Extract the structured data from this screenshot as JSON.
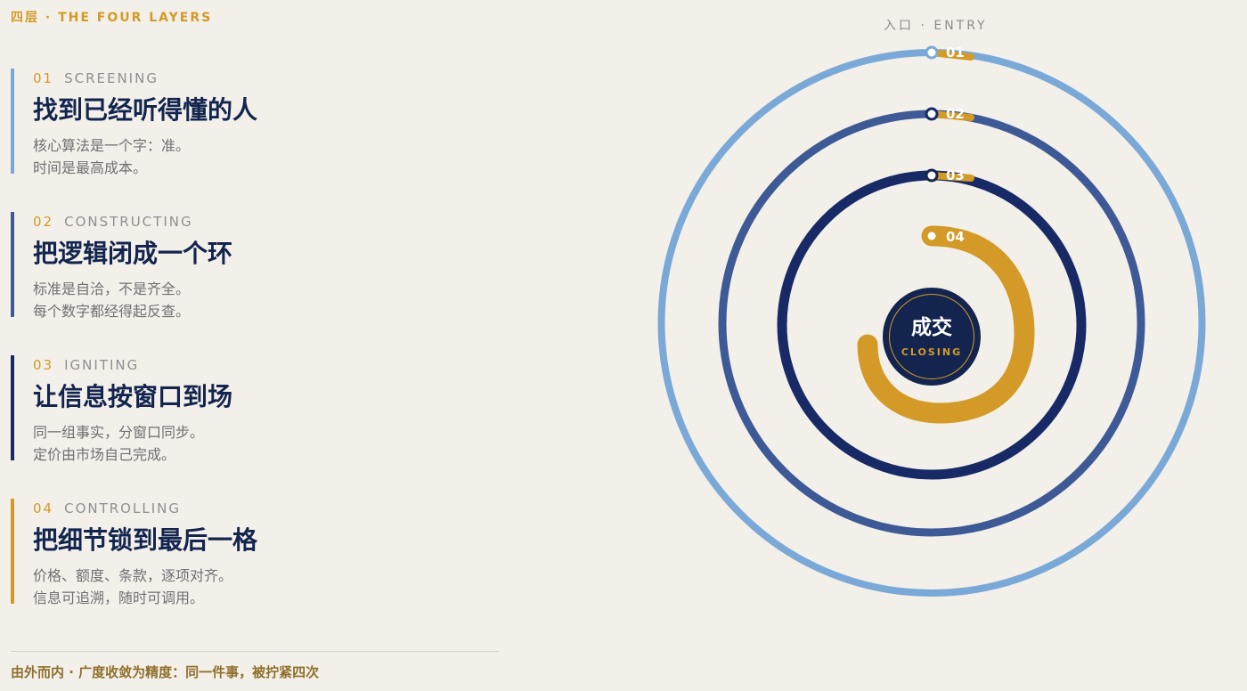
{
  "header": {
    "kicker": "四层 · THE FOUR LAYERS"
  },
  "layers": [
    {
      "number": "01",
      "english": "SCREENING",
      "title": "找到已经听得懂的人",
      "description": [
        "核心算法是一个字：准。",
        "时间是最高成本。"
      ],
      "color": "#7aa9d8"
    },
    {
      "number": "02",
      "english": "CONSTRUCTING",
      "title": "把逻辑闭成一个环",
      "description": [
        "标准是自洽，不是齐全。",
        "每个数字都经得起反查。"
      ],
      "color": "#3e5a96"
    },
    {
      "number": "03",
      "english": "IGNITING",
      "title": "让信息按窗口到场",
      "description": [
        "同一组事实，分窗口同步。",
        "定价由市场自己完成。"
      ],
      "color": "#172a66"
    },
    {
      "number": "04",
      "english": "CONTROLLING",
      "title": "把细节锁到最后一格",
      "description": [
        "价格、额度、条款，逐项对齐。",
        "信息可追溯，随时可调用。"
      ],
      "color": "#d39a27"
    }
  ],
  "footer": {
    "text": "由外而内 · 广度收敛为精度：同一件事，被拧紧四次"
  },
  "diagram": {
    "entry_label": "入口 · ENTRY",
    "center_title": "成交",
    "center_subtitle": "CLOSING",
    "markers": [
      "01",
      "02",
      "03",
      "04"
    ],
    "colors": {
      "ring_01": "#7aa9d8",
      "ring_02": "#3e5a96",
      "ring_03": "#172a66",
      "ring_04": "#d39a27",
      "core": "#13254f",
      "background": "#f3f0ea"
    },
    "icon_names": [
      "entry-marker-icon",
      "ring-marker-icon"
    ]
  }
}
